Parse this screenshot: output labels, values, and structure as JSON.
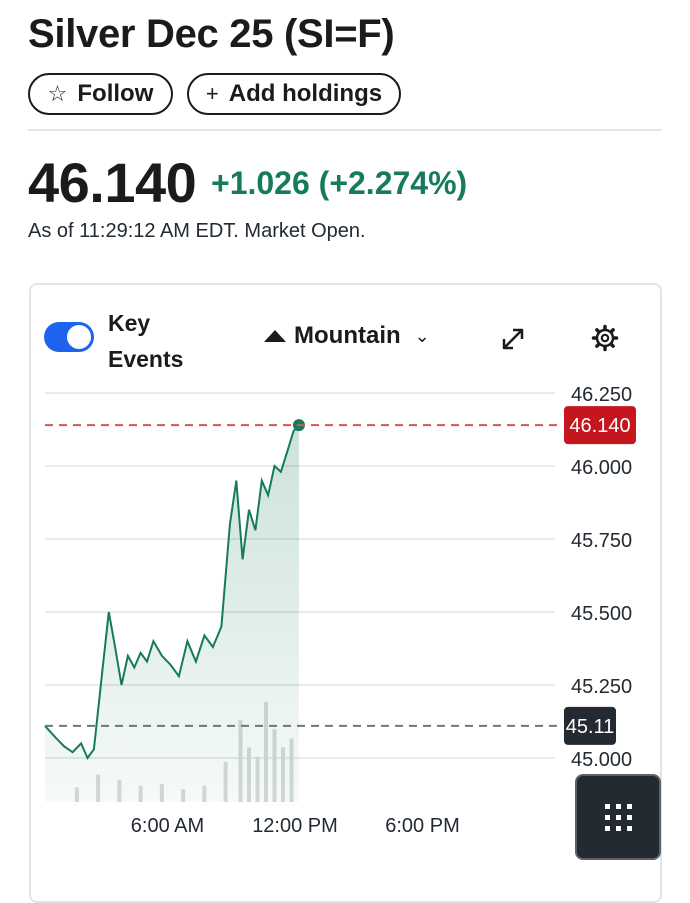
{
  "header": {
    "title": "Silver Dec 25 (SI=F)",
    "follow_label": "Follow",
    "add_holdings_label": "Add holdings"
  },
  "quote": {
    "price": "46.140",
    "change": "+1.026 (+2.274%)",
    "as_of": "As of 11:29:12 AM EDT. Market Open."
  },
  "chart_controls": {
    "key_events_label": "Key Events",
    "key_events_enabled": true,
    "chart_type_label": "Mountain",
    "icons": [
      "star-icon",
      "plus-icon",
      "mountain-icon",
      "chevron-down-icon",
      "expand-icon",
      "gear-icon",
      "grid-icon"
    ]
  },
  "colors": {
    "up": "#167a5c",
    "current_price_badge": "#c4161c",
    "previous_close_badge": "#232a31",
    "toggle_on": "#1d63ed"
  },
  "chart_data": {
    "type": "area",
    "title": "",
    "xlabel": "",
    "ylabel": "",
    "x_tick_labels": [
      "6:00 AM",
      "12:00 PM",
      "6:00 PM"
    ],
    "y_tick_labels": [
      "46.250",
      "46.000",
      "45.750",
      "45.500",
      "45.250",
      "45.000"
    ],
    "ylim": [
      45.0,
      46.25
    ],
    "xlim_hours": [
      0,
      24
    ],
    "grid": "horizontal",
    "current_price": 46.14,
    "current_price_label": "46.140",
    "previous_close": 45.11,
    "previous_close_label": "45.11",
    "series": [
      {
        "x_hours": [
          0,
          0.5,
          0.9,
          1.3,
          1.7,
          2.0,
          2.3,
          2.7,
          3.0,
          3.3,
          3.6,
          3.9,
          4.2,
          4.5,
          4.8,
          5.1,
          5.5,
          5.9,
          6.3,
          6.7,
          7.1,
          7.5,
          7.9,
          8.3,
          8.7,
          9.0,
          9.3,
          9.6,
          9.9,
          10.2,
          10.5,
          10.8,
          11.1,
          11.4,
          11.7,
          11.95
        ],
        "values": [
          45.11,
          45.07,
          45.04,
          45.02,
          45.05,
          45.0,
          45.03,
          45.3,
          45.5,
          45.38,
          45.25,
          45.35,
          45.31,
          45.36,
          45.33,
          45.4,
          45.35,
          45.32,
          45.28,
          45.4,
          45.33,
          45.42,
          45.38,
          45.45,
          45.8,
          45.95,
          45.68,
          45.85,
          45.78,
          45.95,
          45.9,
          46.0,
          45.98,
          46.05,
          46.12,
          46.14
        ]
      }
    ],
    "volume_hours": [
      1.5,
      2.5,
      3.5,
      4.5,
      5.5,
      6.5,
      7.5,
      8.5,
      9.2,
      9.6,
      10.0,
      10.4,
      10.8,
      11.2,
      11.6
    ],
    "volume_values": [
      8,
      15,
      12,
      9,
      10,
      7,
      9,
      22,
      45,
      30,
      25,
      55,
      40,
      30,
      35
    ]
  }
}
